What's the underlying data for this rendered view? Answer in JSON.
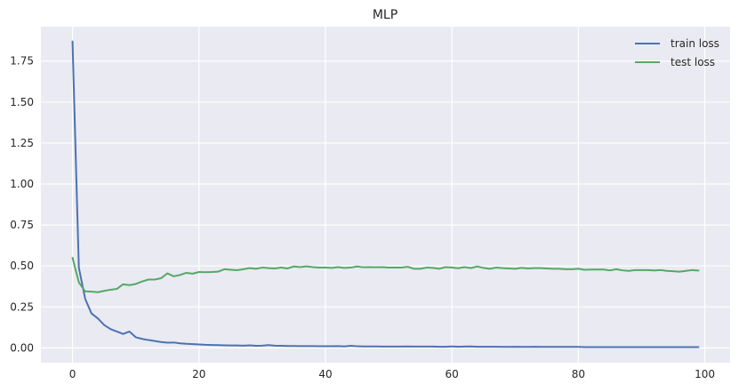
{
  "chart_data": {
    "type": "line",
    "title": "MLP",
    "xlabel": "",
    "ylabel": "",
    "xlim": [
      -5,
      104
    ],
    "ylim": [
      -0.09,
      1.96
    ],
    "xticks": [
      0,
      20,
      40,
      60,
      80,
      100
    ],
    "xtick_labels": [
      "0",
      "20",
      "40",
      "60",
      "80",
      "100"
    ],
    "yticks": [
      0,
      0.25,
      0.5,
      0.75,
      1.0,
      1.25,
      1.5,
      1.75
    ],
    "ytick_labels": [
      "0.00",
      "0.25",
      "0.50",
      "0.75",
      "1.00",
      "1.25",
      "1.50",
      "1.75"
    ],
    "grid": true,
    "legend_position": "top-right",
    "series": [
      {
        "name": "train loss",
        "color": "#4c72b0",
        "x": [
          0,
          1,
          2,
          3,
          4,
          5,
          6,
          7,
          8,
          9,
          10,
          11,
          12,
          13,
          14,
          15,
          16,
          17,
          18,
          19,
          20,
          21,
          22,
          23,
          24,
          25,
          26,
          27,
          28,
          29,
          30,
          31,
          32,
          33,
          34,
          35,
          36,
          37,
          38,
          39,
          40,
          41,
          42,
          43,
          44,
          45,
          46,
          47,
          48,
          49,
          50,
          51,
          52,
          53,
          54,
          55,
          56,
          57,
          58,
          59,
          60,
          61,
          62,
          63,
          64,
          65,
          66,
          67,
          68,
          69,
          70,
          71,
          72,
          73,
          74,
          75,
          76,
          77,
          78,
          79,
          80,
          81,
          82,
          83,
          84,
          85,
          86,
          87,
          88,
          89,
          90,
          91,
          92,
          93,
          94,
          95,
          96,
          97,
          98,
          99
        ],
        "values": [
          1.87,
          0.49,
          0.3,
          0.21,
          0.18,
          0.14,
          0.115,
          0.1,
          0.085,
          0.1,
          0.065,
          0.055,
          0.048,
          0.042,
          0.036,
          0.032,
          0.033,
          0.028,
          0.025,
          0.023,
          0.021,
          0.019,
          0.018,
          0.017,
          0.016,
          0.015,
          0.015,
          0.014,
          0.016,
          0.013,
          0.014,
          0.017,
          0.014,
          0.013,
          0.012,
          0.012,
          0.011,
          0.011,
          0.011,
          0.01,
          0.01,
          0.01,
          0.011,
          0.009,
          0.013,
          0.01,
          0.009,
          0.009,
          0.009,
          0.008,
          0.008,
          0.008,
          0.008,
          0.009,
          0.008,
          0.008,
          0.008,
          0.008,
          0.007,
          0.007,
          0.009,
          0.007,
          0.008,
          0.009,
          0.007,
          0.007,
          0.007,
          0.007,
          0.006,
          0.006,
          0.007,
          0.006,
          0.006,
          0.007,
          0.006,
          0.006,
          0.006,
          0.006,
          0.006,
          0.006,
          0.006,
          0.005,
          0.005,
          0.005,
          0.005,
          0.005,
          0.005,
          0.005,
          0.005,
          0.005,
          0.005,
          0.005,
          0.005,
          0.005,
          0.005,
          0.005,
          0.005,
          0.005,
          0.005,
          0.005
        ]
      },
      {
        "name": "test loss",
        "color": "#55a868",
        "x": [
          0,
          1,
          2,
          3,
          4,
          5,
          6,
          7,
          8,
          9,
          10,
          11,
          12,
          13,
          14,
          15,
          16,
          17,
          18,
          19,
          20,
          21,
          22,
          23,
          24,
          25,
          26,
          27,
          28,
          29,
          30,
          31,
          32,
          33,
          34,
          35,
          36,
          37,
          38,
          39,
          40,
          41,
          42,
          43,
          44,
          45,
          46,
          47,
          48,
          49,
          50,
          51,
          52,
          53,
          54,
          55,
          56,
          57,
          58,
          59,
          60,
          61,
          62,
          63,
          64,
          65,
          66,
          67,
          68,
          69,
          70,
          71,
          72,
          73,
          74,
          75,
          76,
          77,
          78,
          79,
          80,
          81,
          82,
          83,
          84,
          85,
          86,
          87,
          88,
          89,
          90,
          91,
          92,
          93,
          94,
          95,
          96,
          97,
          98,
          99
        ],
        "values": [
          0.55,
          0.4,
          0.345,
          0.343,
          0.34,
          0.348,
          0.355,
          0.36,
          0.388,
          0.383,
          0.39,
          0.405,
          0.417,
          0.417,
          0.425,
          0.455,
          0.437,
          0.445,
          0.458,
          0.453,
          0.463,
          0.462,
          0.463,
          0.465,
          0.48,
          0.477,
          0.474,
          0.48,
          0.487,
          0.483,
          0.49,
          0.487,
          0.485,
          0.49,
          0.485,
          0.497,
          0.493,
          0.498,
          0.493,
          0.49,
          0.49,
          0.488,
          0.493,
          0.488,
          0.49,
          0.497,
          0.492,
          0.493,
          0.492,
          0.493,
          0.49,
          0.49,
          0.49,
          0.495,
          0.483,
          0.483,
          0.49,
          0.488,
          0.483,
          0.493,
          0.49,
          0.486,
          0.493,
          0.487,
          0.497,
          0.488,
          0.483,
          0.49,
          0.487,
          0.485,
          0.483,
          0.488,
          0.485,
          0.487,
          0.487,
          0.485,
          0.483,
          0.483,
          0.48,
          0.48,
          0.483,
          0.477,
          0.478,
          0.478,
          0.478,
          0.473,
          0.48,
          0.473,
          0.47,
          0.475,
          0.475,
          0.475,
          0.473,
          0.475,
          0.47,
          0.468,
          0.465,
          0.47,
          0.475,
          0.472
        ]
      }
    ]
  }
}
